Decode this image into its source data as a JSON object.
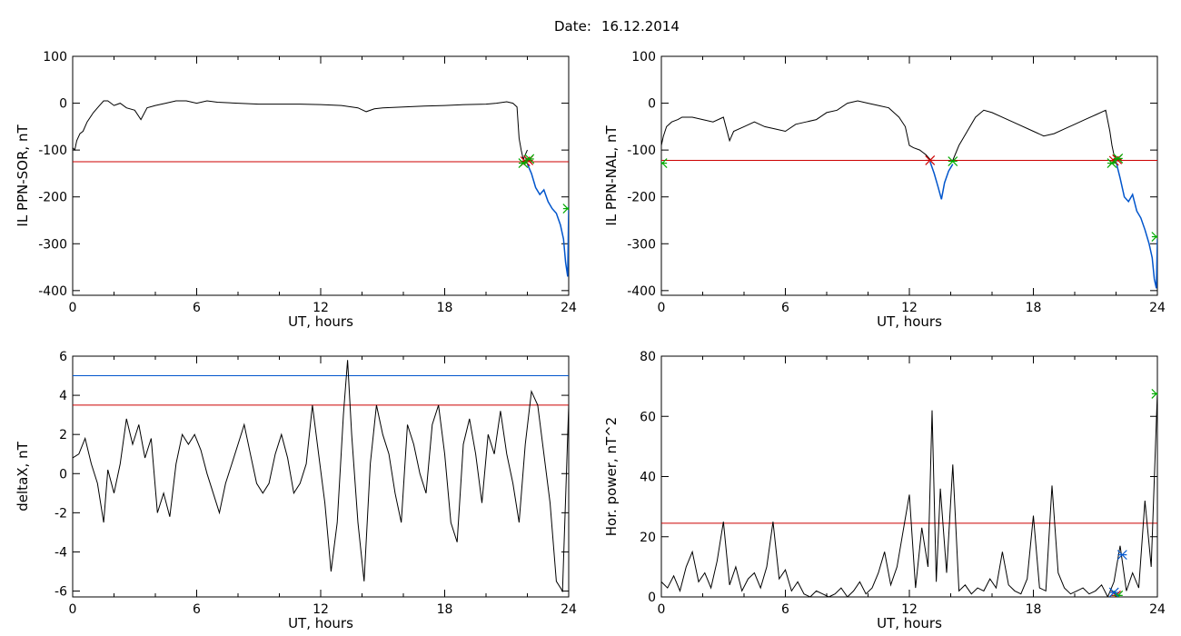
{
  "header": {
    "date_label": "Date:",
    "date_value": "16.12.2014"
  },
  "chart_data": [
    {
      "id": "p1",
      "type": "line",
      "xlabel": "UT, hours",
      "ylabel": "IL PPN-SOR, nT",
      "xlim": [
        0,
        24
      ],
      "ylim": [
        -410,
        100
      ],
      "xticks": [
        0,
        6,
        12,
        18,
        24
      ],
      "yticks": [
        -400,
        -300,
        -200,
        -100,
        0,
        100
      ],
      "hlines": [
        {
          "y": -125,
          "color": "#cc0000"
        }
      ],
      "series": [
        {
          "color": "#000000",
          "x": [
            0,
            0.1,
            0.2,
            0.35,
            0.5,
            0.7,
            1.0,
            1.3,
            1.5,
            1.7,
            2.0,
            2.3,
            2.6,
            3.0,
            3.3,
            3.6,
            4.0,
            4.5,
            5.0,
            5.5,
            6.0,
            6.5,
            7.0,
            8.0,
            9.0,
            10.0,
            11.0,
            12.0,
            13.0,
            13.8,
            14.2,
            14.6,
            15.0,
            16.0,
            17.0,
            18.0,
            19.0,
            20.0,
            20.5,
            21.0,
            21.3,
            21.5,
            21.6,
            21.7,
            21.8,
            21.9,
            22.0
          ],
          "y": [
            -95,
            -100,
            -80,
            -65,
            -60,
            -40,
            -20,
            -5,
            5,
            5,
            -5,
            0,
            -10,
            -15,
            -35,
            -10,
            -5,
            0,
            5,
            5,
            0,
            5,
            2,
            0,
            -2,
            -2,
            -2,
            -3,
            -5,
            -10,
            -18,
            -12,
            -10,
            -8,
            -6,
            -5,
            -3,
            -2,
            0,
            3,
            0,
            -8,
            -75,
            -100,
            -120,
            -110,
            -100
          ]
        },
        {
          "color": "#0055cc",
          "x": [
            22.0,
            22.2,
            22.4,
            22.6,
            22.8,
            23.0,
            23.2,
            23.4,
            23.6,
            23.75,
            23.85,
            23.95,
            24.0
          ],
          "y": [
            -130,
            -150,
            -180,
            -195,
            -185,
            -210,
            -225,
            -235,
            -260,
            -290,
            -340,
            -370,
            -220
          ]
        }
      ],
      "markers": [
        {
          "x": 21.9,
          "y": -124,
          "color": "#cc0000"
        },
        {
          "x": 22.05,
          "y": -122,
          "color": "#cc0000"
        },
        {
          "x": 21.8,
          "y": -128,
          "color": "#00aa00"
        },
        {
          "x": 22.1,
          "y": -119,
          "color": "#00aa00"
        },
        {
          "x": 23.95,
          "y": -225,
          "color": "#00aa00"
        }
      ]
    },
    {
      "id": "p2",
      "type": "line",
      "xlabel": "UT, hours",
      "ylabel": "IL PPN-NAL, nT",
      "xlim": [
        0,
        24
      ],
      "ylim": [
        -410,
        100
      ],
      "xticks": [
        0,
        6,
        12,
        18,
        24
      ],
      "yticks": [
        -400,
        -300,
        -200,
        -100,
        0,
        100
      ],
      "hlines": [
        {
          "y": -122,
          "color": "#cc0000"
        }
      ],
      "series": [
        {
          "color": "#000000",
          "x": [
            0,
            0.1,
            0.25,
            0.5,
            0.8,
            1.0,
            1.5,
            2.0,
            2.5,
            3.0,
            3.3,
            3.5,
            4.0,
            4.5,
            5.0,
            5.5,
            6.0,
            6.5,
            7.0,
            7.5,
            8.0,
            8.5,
            9.0,
            9.5,
            10.0,
            10.5,
            11.0,
            11.5,
            11.8,
            12.0,
            12.2,
            12.5,
            12.8,
            13.0
          ],
          "y": [
            -90,
            -70,
            -50,
            -40,
            -35,
            -30,
            -30,
            -35,
            -40,
            -30,
            -80,
            -60,
            -50,
            -40,
            -50,
            -55,
            -60,
            -45,
            -40,
            -35,
            -20,
            -15,
            0,
            5,
            0,
            -5,
            -10,
            -30,
            -50,
            -90,
            -95,
            -100,
            -110,
            -120
          ]
        },
        {
          "color": "#0055cc",
          "x": [
            13.0,
            13.2,
            13.4,
            13.55,
            13.7,
            13.9,
            14.1
          ],
          "y": [
            -125,
            -150,
            -180,
            -205,
            -170,
            -145,
            -130
          ]
        },
        {
          "color": "#000000",
          "x": [
            14.1,
            14.4,
            14.8,
            15.2,
            15.6,
            16.0,
            17.0,
            18.0,
            18.5,
            19.0,
            19.5,
            20.0,
            20.5,
            21.0,
            21.5,
            21.7,
            21.8,
            21.9,
            22.0
          ],
          "y": [
            -122,
            -90,
            -60,
            -30,
            -15,
            -20,
            -40,
            -60,
            -70,
            -65,
            -55,
            -45,
            -35,
            -25,
            -15,
            -60,
            -90,
            -110,
            -115
          ]
        },
        {
          "color": "#0055cc",
          "x": [
            22.0,
            22.2,
            22.4,
            22.6,
            22.8,
            23.0,
            23.2,
            23.4,
            23.6,
            23.75,
            23.85,
            23.95,
            24.0
          ],
          "y": [
            -125,
            -160,
            -200,
            -210,
            -195,
            -230,
            -245,
            -270,
            -300,
            -330,
            -375,
            -395,
            -290
          ]
        }
      ],
      "markers": [
        {
          "x": 13.0,
          "y": -122,
          "color": "#cc0000"
        },
        {
          "x": 14.1,
          "y": -124,
          "color": "#00aa00"
        },
        {
          "x": 21.9,
          "y": -123,
          "color": "#cc0000"
        },
        {
          "x": 22.05,
          "y": -120,
          "color": "#cc0000"
        },
        {
          "x": 21.8,
          "y": -128,
          "color": "#00aa00"
        },
        {
          "x": 22.1,
          "y": -118,
          "color": "#00aa00"
        },
        {
          "x": 23.95,
          "y": -285,
          "color": "#00aa00"
        },
        {
          "x": 0.05,
          "y": -128,
          "color": "#00aa00"
        }
      ]
    },
    {
      "id": "p3",
      "type": "line",
      "xlabel": "UT, hours",
      "ylabel": "deltaX, nT",
      "xlim": [
        0,
        24
      ],
      "ylim": [
        -6.3,
        6
      ],
      "xticks": [
        0,
        6,
        12,
        18,
        24
      ],
      "yticks": [
        -6,
        -4,
        -2,
        0,
        2,
        4,
        6
      ],
      "hlines": [
        {
          "y": 5.0,
          "color": "#0055cc"
        },
        {
          "y": 3.5,
          "color": "#cc0000"
        }
      ],
      "series": [
        {
          "color": "#000000",
          "x": [
            0,
            0.3,
            0.6,
            0.9,
            1.2,
            1.5,
            1.7,
            2.0,
            2.3,
            2.6,
            2.9,
            3.2,
            3.5,
            3.8,
            4.1,
            4.4,
            4.7,
            5.0,
            5.3,
            5.6,
            5.9,
            6.2,
            6.5,
            6.8,
            7.1,
            7.4,
            7.7,
            8.0,
            8.3,
            8.6,
            8.9,
            9.2,
            9.5,
            9.8,
            10.1,
            10.4,
            10.7,
            11.0,
            11.3,
            11.6,
            11.9,
            12.2,
            12.5,
            12.8,
            13.1,
            13.3,
            13.5,
            13.8,
            14.1,
            14.4,
            14.7,
            15.0,
            15.3,
            15.6,
            15.9,
            16.2,
            16.5,
            16.8,
            17.1,
            17.4,
            17.7,
            18.0,
            18.3,
            18.6,
            18.9,
            19.2,
            19.5,
            19.8,
            20.1,
            20.4,
            20.7,
            21.0,
            21.3,
            21.6,
            21.9,
            22.2,
            22.5,
            22.8,
            23.1,
            23.4,
            23.7,
            24.0
          ],
          "y": [
            0.8,
            1.0,
            1.8,
            0.5,
            -0.5,
            -2.5,
            0.2,
            -1.0,
            0.5,
            2.8,
            1.5,
            2.5,
            0.8,
            1.8,
            -2.0,
            -1.0,
            -2.2,
            0.5,
            2.0,
            1.5,
            2.0,
            1.2,
            0.0,
            -1.0,
            -2.0,
            -0.5,
            0.5,
            1.5,
            2.5,
            1.0,
            -0.5,
            -1.0,
            -0.5,
            1.0,
            2.0,
            0.8,
            -1.0,
            -0.5,
            0.5,
            3.5,
            1.0,
            -1.5,
            -5.0,
            -2.5,
            3.0,
            5.8,
            2.0,
            -2.5,
            -5.5,
            0.5,
            3.5,
            2.0,
            1.0,
            -1.0,
            -2.5,
            2.5,
            1.5,
            0.0,
            -1.0,
            2.5,
            3.5,
            1.0,
            -2.5,
            -3.5,
            1.5,
            2.8,
            1.0,
            -1.5,
            2.0,
            1.0,
            3.2,
            1.0,
            -0.5,
            -2.5,
            1.5,
            4.2,
            3.5,
            1.0,
            -1.5,
            -5.5,
            -6.0,
            3.5
          ]
        }
      ],
      "markers": []
    },
    {
      "id": "p4",
      "type": "line",
      "xlabel": "UT, hours",
      "ylabel": "Hor. power, nT^2",
      "xlim": [
        0,
        24
      ],
      "ylim": [
        0,
        80
      ],
      "xticks": [
        0,
        6,
        12,
        18,
        24
      ],
      "yticks": [
        0,
        20,
        40,
        60,
        80
      ],
      "hlines": [
        {
          "y": 24.5,
          "color": "#cc0000"
        }
      ],
      "series": [
        {
          "color": "#000000",
          "x": [
            0,
            0.3,
            0.6,
            0.9,
            1.2,
            1.5,
            1.8,
            2.1,
            2.4,
            2.7,
            3.0,
            3.3,
            3.6,
            3.9,
            4.2,
            4.5,
            4.8,
            5.1,
            5.4,
            5.7,
            6.0,
            6.3,
            6.6,
            6.9,
            7.2,
            7.5,
            7.8,
            8.1,
            8.4,
            8.7,
            9.0,
            9.3,
            9.6,
            9.9,
            10.2,
            10.5,
            10.8,
            11.1,
            11.4,
            11.7,
            12.0,
            12.3,
            12.6,
            12.9,
            13.1,
            13.3,
            13.5,
            13.8,
            14.1,
            14.4,
            14.7,
            15.0,
            15.3,
            15.6,
            15.9,
            16.2,
            16.5,
            16.8,
            17.1,
            17.4,
            17.7,
            18.0,
            18.3,
            18.6,
            18.9,
            19.2,
            19.5,
            19.8,
            20.1,
            20.4,
            20.7,
            21.0,
            21.3,
            21.6,
            21.9,
            22.2,
            22.5,
            22.8,
            23.1,
            23.4,
            23.7,
            24.0
          ],
          "y": [
            5,
            3,
            7,
            2,
            10,
            15,
            5,
            8,
            3,
            12,
            25,
            4,
            10,
            2,
            6,
            8,
            3,
            10,
            25,
            6,
            9,
            2,
            5,
            1,
            0,
            2,
            1,
            0,
            1,
            3,
            0,
            2,
            5,
            1,
            3,
            8,
            15,
            4,
            10,
            22,
            34,
            3,
            23,
            10,
            62,
            5,
            36,
            8,
            44,
            2,
            4,
            1,
            3,
            2,
            6,
            3,
            15,
            4,
            2,
            1,
            6,
            27,
            3,
            2,
            37,
            8,
            3,
            1,
            2,
            3,
            1,
            2,
            4,
            0,
            5,
            17,
            2,
            8,
            3,
            32,
            10,
            68
          ]
        }
      ],
      "markers": [
        {
          "x": 22.0,
          "y": 0.5,
          "color": "#cc0000"
        },
        {
          "x": 22.1,
          "y": 0.5,
          "color": "#00aa00"
        },
        {
          "x": 21.9,
          "y": 1.5,
          "color": "#0055cc"
        },
        {
          "x": 22.3,
          "y": 14,
          "color": "#0055cc"
        },
        {
          "x": 23.95,
          "y": 67.5,
          "color": "#00aa00"
        }
      ]
    }
  ]
}
